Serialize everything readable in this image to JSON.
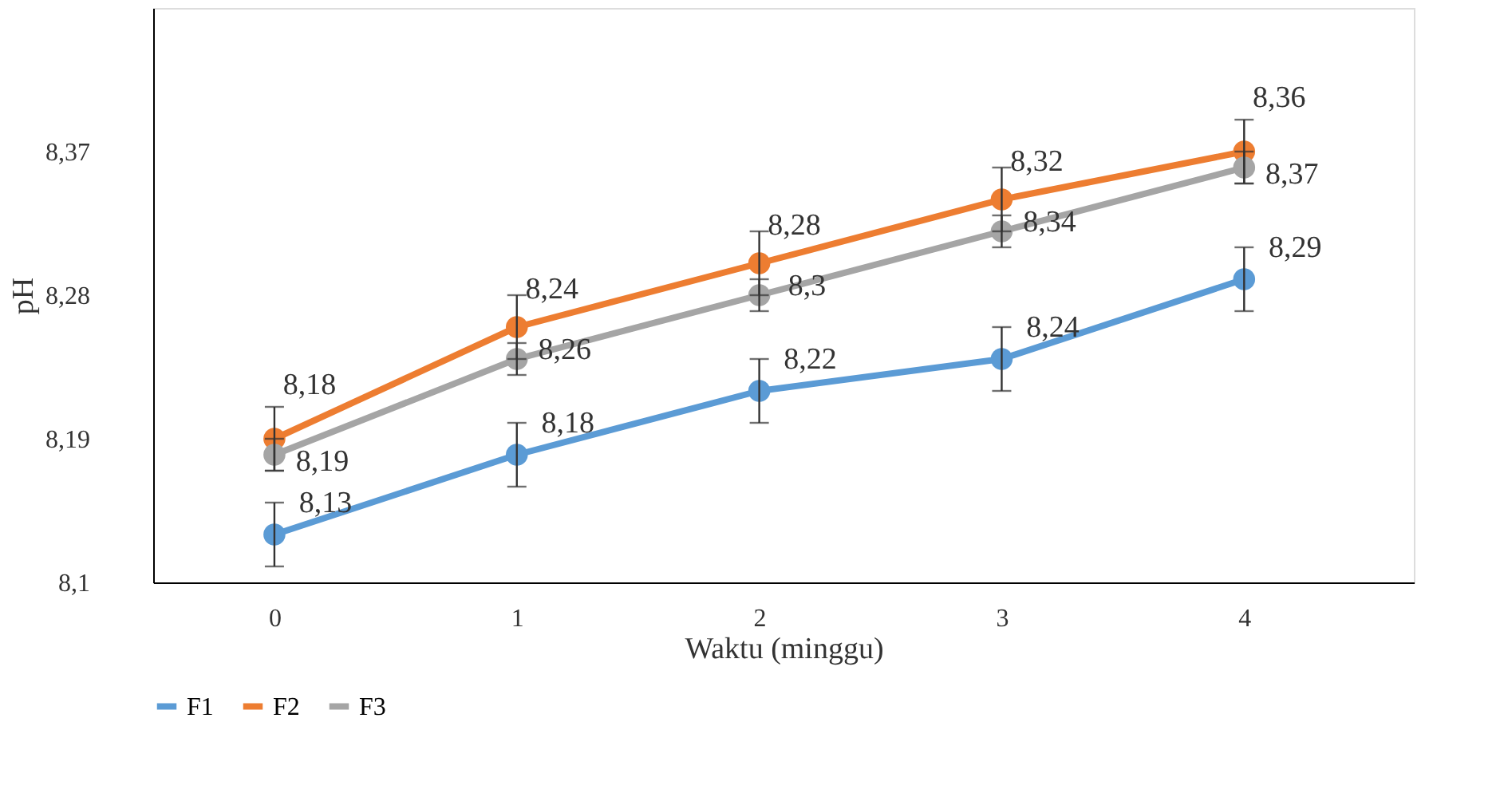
{
  "chart_data": {
    "type": "line",
    "xlabel": "Waktu (minggu)",
    "ylabel": "pH",
    "categories": [
      "0",
      "1",
      "2",
      "3",
      "4"
    ],
    "series": [
      {
        "name": "F1",
        "color": "#5b9bd5",
        "values": [
          8.13,
          8.18,
          8.22,
          8.24,
          8.29
        ],
        "errors": [
          0.02,
          0.02,
          0.02,
          0.02,
          0.02
        ],
        "value_labels": [
          "8,13",
          "8,18",
          "8,22",
          "8,24",
          "8,29"
        ]
      },
      {
        "name": "F2",
        "color": "#ed7d31",
        "values": [
          8.19,
          8.26,
          8.3,
          8.34,
          8.37
        ],
        "errors": [
          0.02,
          0.02,
          0.02,
          0.02,
          0.02
        ],
        "value_labels": [
          "8,19",
          "8,26",
          "8,3",
          "8,34",
          "8,37"
        ]
      },
      {
        "name": "F3",
        "color": "#a5a5a5",
        "values": [
          8.18,
          8.24,
          8.28,
          8.32,
          8.36
        ],
        "errors": [
          0.01,
          0.01,
          0.01,
          0.01,
          0.01
        ],
        "value_labels": [
          "8,18",
          "8,24",
          "8,28",
          "8,32",
          "8,36"
        ]
      }
    ],
    "ylim": [
      8.1,
      8.46
    ],
    "yticks": [
      {
        "value": 8.1,
        "label": "8,1"
      },
      {
        "value": 8.19,
        "label": "8,19"
      },
      {
        "value": 8.28,
        "label": "8,28"
      },
      {
        "value": 8.37,
        "label": "8,37"
      }
    ],
    "grid": false,
    "legend": "bottom",
    "marker": "circle",
    "line_style": "solid"
  }
}
